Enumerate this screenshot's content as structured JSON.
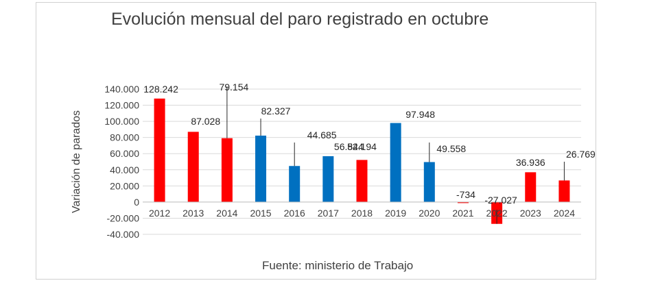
{
  "chart_data": {
    "type": "bar",
    "title": "Evolución mensual del paro registrado en octubre",
    "xlabel": "",
    "ylabel": "Variación de parados",
    "source": "Fuente: ministerio de Trabajo",
    "ylim": [
      -40000,
      140000
    ],
    "y_ticks": [
      "140.000",
      "120.000",
      "100.000",
      "80.000",
      "60.000",
      "40.000",
      "20.000",
      "0",
      "-20.000",
      "-40.000"
    ],
    "y_tick_values": [
      140000,
      120000,
      100000,
      80000,
      60000,
      40000,
      20000,
      0,
      -20000,
      -40000
    ],
    "grid": true,
    "categories": [
      "2012",
      "2013",
      "2014",
      "2015",
      "2016",
      "2017",
      "2018",
      "2019",
      "2020",
      "2021",
      "2022",
      "2023",
      "2024"
    ],
    "values": [
      128242,
      87028,
      79154,
      82327,
      44685,
      56844,
      52194,
      97948,
      49558,
      -734,
      -27027,
      36936,
      26769
    ],
    "data_labels": [
      "128.242",
      "87.028",
      "79.154",
      "82.327",
      "44.685",
      "56.844",
      "52.194",
      "97.948",
      "49.558",
      "-734",
      "-27.027",
      "36.936",
      "26.769"
    ],
    "colors": [
      "#ff0000",
      "#ff0000",
      "#ff0000",
      "#0070c0",
      "#0070c0",
      "#0070c0",
      "#ff0000",
      "#0070c0",
      "#0070c0",
      "#ff0000",
      "#ff0000",
      "#ff0000",
      "#ff0000"
    ]
  }
}
